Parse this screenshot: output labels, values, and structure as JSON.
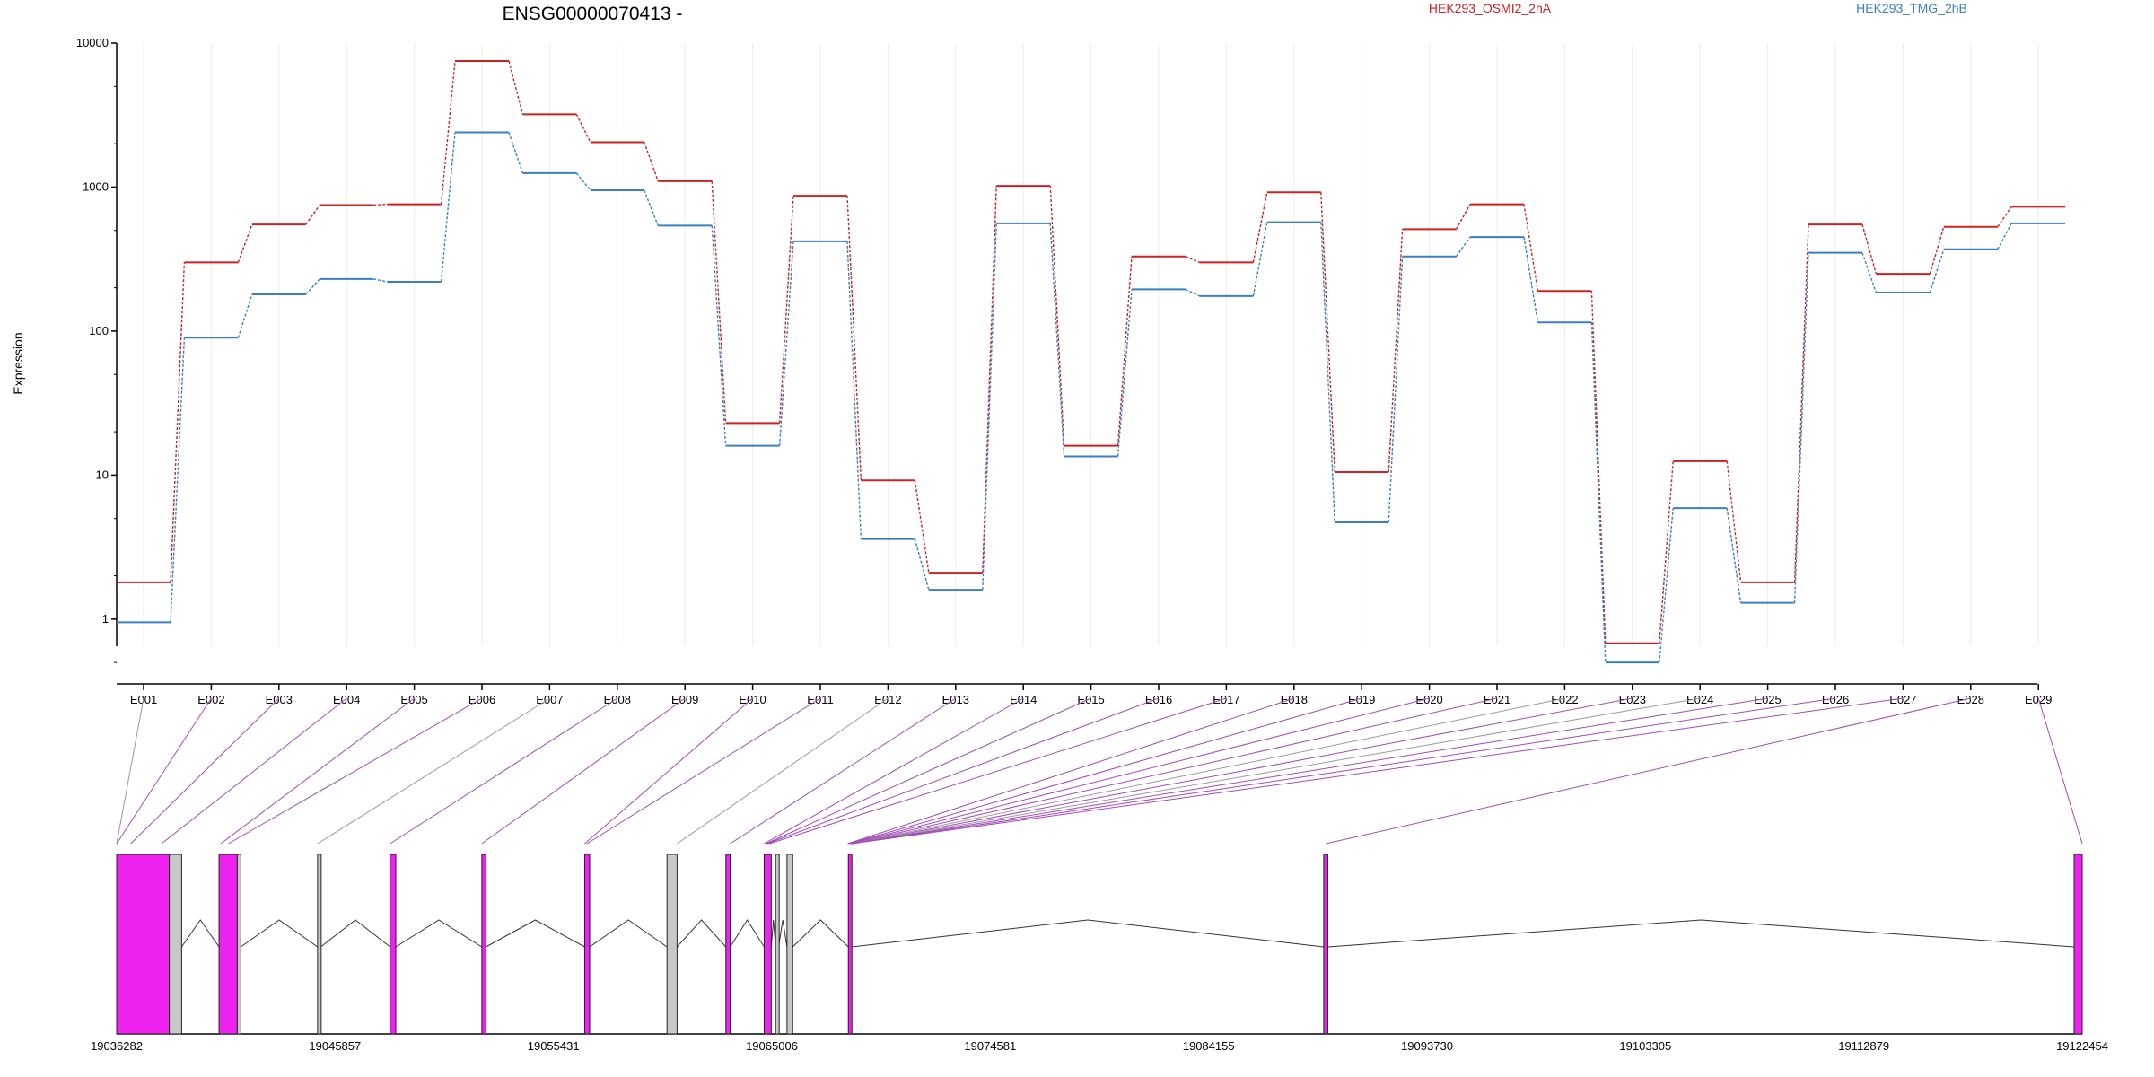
{
  "chart_data": {
    "type": "line",
    "title": "ENSG00000070413 -",
    "ylabel": "Expression",
    "yscale": "log",
    "ylim": [
      0.5,
      10000
    ],
    "yticks": [
      "1",
      "10",
      "100",
      "1000",
      "10000"
    ],
    "categories": [
      "E001",
      "E002",
      "E003",
      "E004",
      "E005",
      "E006",
      "E007",
      "E008",
      "E009",
      "E010",
      "E011",
      "E012",
      "E013",
      "E014",
      "E015",
      "E016",
      "E017",
      "E018",
      "E019",
      "E020",
      "E021",
      "E022",
      "E023",
      "E024",
      "E025",
      "E026",
      "E027",
      "E028",
      "E029"
    ],
    "series": [
      {
        "name": "HEK293_OSMI2_2hA",
        "color": "#cc2222",
        "values": [
          1.8,
          300,
          550,
          750,
          760,
          7500,
          3200,
          2050,
          1100,
          23,
          870,
          9.2,
          2.1,
          1020,
          16,
          330,
          300,
          920,
          10.5,
          510,
          760,
          190,
          0.68,
          12.5,
          1.8,
          550,
          250,
          530,
          730
        ]
      },
      {
        "name": "HEK293_TMG_2hB",
        "color": "#3a7fc4",
        "values": [
          0.95,
          90,
          180,
          230,
          220,
          2400,
          1250,
          950,
          540,
          16,
          420,
          3.6,
          1.6,
          560,
          13.5,
          195,
          175,
          570,
          4.7,
          330,
          450,
          115,
          0.5,
          5.9,
          1.3,
          350,
          185,
          370,
          560
        ]
      }
    ],
    "grid": "vertical",
    "legend_position": "top",
    "gene_model": {
      "xticks": [
        "19036282",
        "19045857",
        "19055431",
        "19065006",
        "19074581",
        "19084155",
        "19093730",
        "19103305",
        "19112879",
        "19122454"
      ],
      "xlim": [
        19036282,
        19122454
      ],
      "exon_color": "#ee22ee",
      "intron_color": "#c8c8c8",
      "blocks": [
        {
          "start": 19036282,
          "end": 19038590,
          "kind": "exon"
        },
        {
          "start": 19038590,
          "end": 19039130,
          "kind": "intron"
        },
        {
          "start": 19040770,
          "end": 19041570,
          "kind": "exon"
        },
        {
          "start": 19041570,
          "end": 19041720,
          "kind": "intron"
        },
        {
          "start": 19045090,
          "end": 19045230,
          "kind": "intron"
        },
        {
          "start": 19048270,
          "end": 19048520,
          "kind": "exon"
        },
        {
          "start": 19052290,
          "end": 19052470,
          "kind": "exon"
        },
        {
          "start": 19056800,
          "end": 19057020,
          "kind": "exon"
        },
        {
          "start": 19060410,
          "end": 19060850,
          "kind": "intron"
        },
        {
          "start": 19062990,
          "end": 19063180,
          "kind": "exon"
        },
        {
          "start": 19064670,
          "end": 19064980,
          "kind": "exon"
        },
        {
          "start": 19065170,
          "end": 19065300,
          "kind": "intron"
        },
        {
          "start": 19065670,
          "end": 19065920,
          "kind": "intron"
        },
        {
          "start": 19068360,
          "end": 19068510,
          "kind": "exon"
        },
        {
          "start": 19089200,
          "end": 19089380,
          "kind": "exon"
        },
        {
          "start": 19122100,
          "end": 19122454,
          "kind": "exon"
        }
      ],
      "exon_anchor_positions": [
        19036282,
        19036282,
        19036900,
        19038250,
        19040850,
        19041180,
        19045090,
        19048270,
        19052290,
        19056800,
        19056900,
        19060850,
        19063180,
        19064670,
        19064750,
        19064800,
        19064900,
        19068330,
        19068380,
        19068420,
        19068450,
        19068490,
        19068510,
        19068510,
        19068510,
        19068510,
        19068510,
        19089300,
        19122454
      ],
      "connector_kinds": [
        "intron",
        "exon",
        "exon",
        "exon",
        "exon",
        "exon",
        "intron",
        "exon",
        "exon",
        "exon",
        "exon",
        "intron",
        "exon",
        "exon",
        "exon",
        "exon",
        "exon",
        "exon",
        "exon",
        "exon",
        "exon",
        "intron",
        "exon",
        "intron",
        "exon",
        "exon",
        "exon",
        "exon",
        "exon"
      ]
    }
  }
}
